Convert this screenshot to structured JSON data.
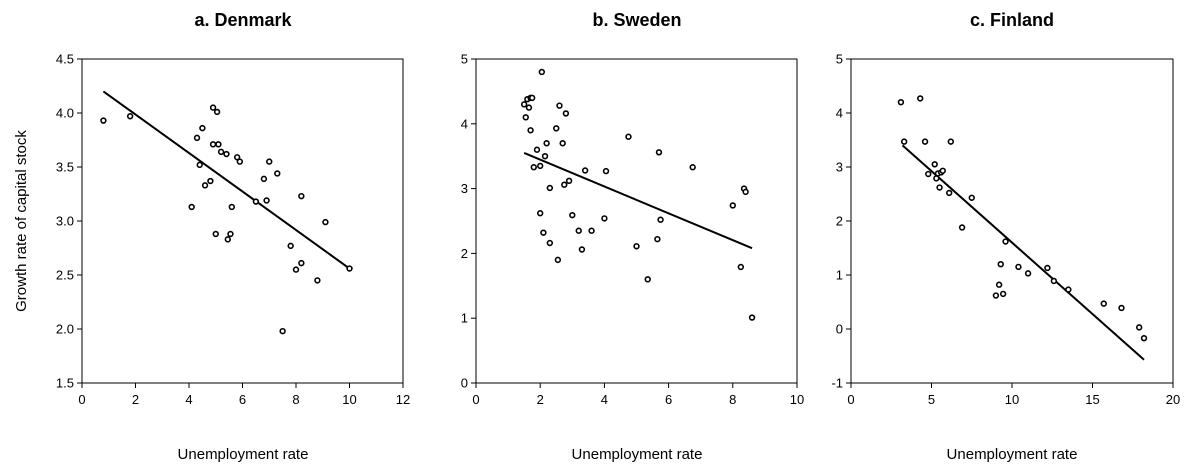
{
  "figure": {
    "ylabel": "Growth rate of capital stock"
  },
  "chart_data": [
    {
      "type": "scatter",
      "title": "a. Denmark",
      "xlabel": "Unemployment rate",
      "xlim": [
        0,
        12
      ],
      "ylim": [
        1.5,
        4.5
      ],
      "xticks": [
        0,
        2,
        4,
        6,
        8,
        10,
        12
      ],
      "yticks": [
        1.5,
        2.0,
        2.5,
        3.0,
        3.5,
        4.0,
        4.5
      ],
      "ytick_labels": [
        "1.5",
        "2.0",
        "2.5",
        "3.0",
        "3.5",
        "4.0",
        "4.5"
      ],
      "grid": false,
      "trendline": [
        [
          0.8,
          4.2
        ],
        [
          10.0,
          2.56
        ]
      ],
      "points": [
        [
          0.8,
          3.93
        ],
        [
          1.8,
          3.97
        ],
        [
          4.1,
          3.13
        ],
        [
          4.3,
          3.77
        ],
        [
          4.4,
          3.52
        ],
        [
          4.5,
          3.86
        ],
        [
          4.6,
          3.33
        ],
        [
          4.8,
          3.37
        ],
        [
          4.9,
          3.71
        ],
        [
          4.9,
          4.05
        ],
        [
          5.0,
          2.88
        ],
        [
          5.05,
          4.01
        ],
        [
          5.1,
          3.71
        ],
        [
          5.2,
          3.64
        ],
        [
          5.4,
          3.62
        ],
        [
          5.45,
          2.83
        ],
        [
          5.55,
          2.88
        ],
        [
          5.6,
          3.13
        ],
        [
          5.8,
          3.59
        ],
        [
          5.9,
          3.55
        ],
        [
          6.5,
          3.18
        ],
        [
          6.8,
          3.39
        ],
        [
          6.9,
          3.19
        ],
        [
          7.0,
          3.55
        ],
        [
          7.3,
          3.44
        ],
        [
          7.5,
          1.98
        ],
        [
          7.8,
          2.77
        ],
        [
          8.0,
          2.55
        ],
        [
          8.2,
          3.23
        ],
        [
          8.2,
          2.61
        ],
        [
          8.8,
          2.45
        ],
        [
          9.1,
          2.99
        ],
        [
          10.0,
          2.56
        ]
      ]
    },
    {
      "type": "scatter",
      "title": "b. Sweden",
      "xlabel": "Unemployment rate",
      "xlim": [
        0,
        10
      ],
      "ylim": [
        0,
        5
      ],
      "xticks": [
        0,
        2,
        4,
        6,
        8,
        10
      ],
      "yticks": [
        0,
        1,
        2,
        3,
        4,
        5
      ],
      "ytick_labels": [
        "0",
        "1",
        "2",
        "3",
        "4",
        "5"
      ],
      "grid": false,
      "trendline": [
        [
          1.5,
          3.55
        ],
        [
          8.6,
          2.08
        ]
      ],
      "points": [
        [
          1.5,
          4.3
        ],
        [
          1.55,
          4.1
        ],
        [
          1.6,
          4.38
        ],
        [
          1.65,
          4.25
        ],
        [
          1.7,
          4.4
        ],
        [
          1.7,
          3.9
        ],
        [
          1.75,
          4.4
        ],
        [
          1.8,
          3.33
        ],
        [
          1.9,
          3.6
        ],
        [
          2.0,
          2.62
        ],
        [
          2.0,
          3.35
        ],
        [
          2.05,
          4.8
        ],
        [
          2.1,
          2.32
        ],
        [
          2.15,
          3.5
        ],
        [
          2.2,
          3.7
        ],
        [
          2.3,
          2.16
        ],
        [
          2.3,
          3.01
        ],
        [
          2.5,
          3.93
        ],
        [
          2.55,
          1.9
        ],
        [
          2.6,
          4.28
        ],
        [
          2.7,
          3.7
        ],
        [
          2.75,
          3.06
        ],
        [
          2.8,
          4.16
        ],
        [
          2.9,
          3.12
        ],
        [
          3.0,
          2.59
        ],
        [
          3.2,
          2.35
        ],
        [
          3.3,
          2.06
        ],
        [
          3.4,
          3.28
        ],
        [
          3.6,
          2.35
        ],
        [
          4.0,
          2.54
        ],
        [
          4.05,
          3.27
        ],
        [
          4.75,
          3.8
        ],
        [
          5.0,
          2.11
        ],
        [
          5.35,
          1.6
        ],
        [
          5.65,
          2.22
        ],
        [
          5.7,
          3.56
        ],
        [
          5.75,
          2.52
        ],
        [
          6.75,
          3.33
        ],
        [
          8.0,
          2.74
        ],
        [
          8.25,
          1.79
        ],
        [
          8.35,
          3.0
        ],
        [
          8.4,
          2.95
        ],
        [
          8.6,
          1.01
        ]
      ]
    },
    {
      "type": "scatter",
      "title": "c. Finland",
      "xlabel": "Unemployment rate",
      "xlim": [
        0,
        20
      ],
      "ylim": [
        -1,
        5
      ],
      "xticks": [
        0,
        5,
        10,
        15,
        20
      ],
      "yticks": [
        -1,
        0,
        1,
        2,
        3,
        4,
        5
      ],
      "ytick_labels": [
        "-1",
        "0",
        "1",
        "2",
        "3",
        "4",
        "5"
      ],
      "grid": false,
      "trendline": [
        [
          3.2,
          3.4
        ],
        [
          18.2,
          -0.57
        ]
      ],
      "points": [
        [
          3.1,
          4.2
        ],
        [
          3.3,
          3.47
        ],
        [
          4.3,
          4.27
        ],
        [
          4.6,
          3.47
        ],
        [
          4.8,
          2.87
        ],
        [
          5.2,
          3.05
        ],
        [
          5.3,
          2.79
        ],
        [
          5.4,
          2.88
        ],
        [
          5.5,
          2.62
        ],
        [
          5.6,
          2.9
        ],
        [
          5.7,
          2.93
        ],
        [
          6.1,
          2.52
        ],
        [
          6.2,
          3.47
        ],
        [
          6.9,
          1.88
        ],
        [
          7.5,
          2.43
        ],
        [
          9.0,
          0.62
        ],
        [
          9.2,
          0.82
        ],
        [
          9.3,
          1.2
        ],
        [
          9.45,
          0.65
        ],
        [
          9.6,
          1.62
        ],
        [
          10.4,
          1.15
        ],
        [
          11.0,
          1.03
        ],
        [
          12.2,
          1.13
        ],
        [
          12.6,
          0.89
        ],
        [
          13.5,
          0.73
        ],
        [
          15.7,
          0.47
        ],
        [
          16.8,
          0.39
        ],
        [
          17.9,
          0.03
        ],
        [
          18.2,
          -0.17
        ]
      ]
    }
  ]
}
